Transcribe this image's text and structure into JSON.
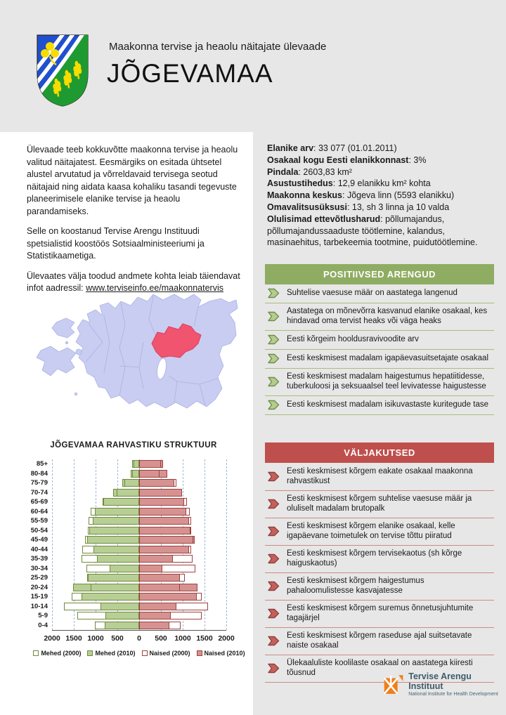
{
  "header": {
    "subtitle": "Maakonna tervise ja heaolu näitajate ülevaade",
    "title": "JÕGEVAMAA"
  },
  "intro": {
    "p1": "Ülevaade teeb kokkuvõtte maakonna tervise ja heaolu valitud näitajatest. Eesmärgiks on esitada ühtsetel alustel arvutatud ja võrreldavaid tervisega seotud näitajaid ning aidata kaasa kohaliku tasandi tegevuste planeerimisele elanike tervise ja heaolu parandamiseks.",
    "p2": "Selle on koostanud Tervise Arengu Instituudi spetsialistid koostöös Sotsiaalministeeriumi ja Statistikaametiga.",
    "p3_prefix": "Ülevaates välja toodud andmete kohta leiab täiendavat infot aadressil: ",
    "link": "www.terviseinfo.ee/maakonnatervis"
  },
  "facts": [
    {
      "label": "Elanike arv",
      "value": "33 077 (01.01.2011)"
    },
    {
      "label": "Osakaal kogu Eesti elanikkonnast",
      "value": "3%"
    },
    {
      "label": "Pindala",
      "value": "2603,83 km²"
    },
    {
      "label": "Asustustihedus",
      "value": "12,9 elanikku km² kohta"
    },
    {
      "label": "Maakonna keskus",
      "value": "Jõgeva linn (5593 elanikku)"
    },
    {
      "label": "Omavalitsusüksusi",
      "value": "13, sh 3 linna ja 10 valda"
    },
    {
      "label": "Olulisimad ettevõtlusharud",
      "value": "põllumajandus, põllumajandussaaduste töötlemine, kalandus, masinaehitus, tarbekeemia tootmine, puidutöötlemine."
    }
  ],
  "positive": {
    "title": "POSITIIVSED ARENGUD",
    "header_color": "#8fac63",
    "items": [
      "Suhtelise vaesuse määr on aastatega langenud",
      "Aastatega on mõnevõrra kasvanud elanike osakaal, kes hindavad oma tervist heaks või väga heaks",
      "Eesti kõrgeim hooldusravivoodite arv",
      "Eesti keskmisest madalam igapäevasuitsetajate osakaal",
      "Eesti keskmisest madalam haigestumus hepatiitidesse, tuberkuloosi ja seksuaalsel teel levivatesse haigustesse",
      "Eesti keskmisest madalam isikuvastaste kuritegude tase"
    ]
  },
  "challenges": {
    "title": "VÄLJAKUTSED",
    "header_color": "#bf4f4c",
    "items": [
      "Eesti keskmisest kõrgem eakate osakaal maakonna rahvastikust",
      "Eesti keskmisest kõrgem suhtelise vaesuse määr ja oluliselt madalam brutopalk",
      "Eesti keskmisest kõrgem elanike osakaal, kelle igapäevane toimetulek on tervise tõttu piiratud",
      "Eesti keskmisest kõrgem tervisekaotus (sh kõrge haiguskaotus)",
      "Eesti keskmisest kõrgem haigestumus pahaloomulistesse kasvajatesse",
      "Eesti keskmisest kõrgem suremus õnnetusjuhtumite tagajärjel",
      "Eesti keskmisest kõrgem raseduse ajal suitsetavate naiste osakaal",
      "Ülekaaluliste koolilaste osakaal on aastatega kiiresti tõusnud"
    ]
  },
  "map": {
    "label": "estonia-county-map",
    "highlighted_county": "Jõgevamaa",
    "base_color": "#c9cdf1",
    "border_color": "#aab2e6",
    "highlight_color": "#f0546f"
  },
  "chart_data": {
    "type": "bar",
    "subtype": "population-pyramid",
    "title": "JÕGEVAMAA RAHVASTIKU STRUKTUUR",
    "age_groups": [
      "85+",
      "80-84",
      "75-79",
      "70-74",
      "65-69",
      "60-64",
      "55-59",
      "50-54",
      "45-49",
      "40-44",
      "35-39",
      "30-34",
      "25-29",
      "20-24",
      "15-19",
      "10-14",
      "5-9",
      "0-4"
    ],
    "series": [
      {
        "name": "Mehed (2000)",
        "style": "outline",
        "color": "#71893f",
        "values": [
          130,
          165,
          335,
          515,
          820,
          1115,
          1165,
          1185,
          1240,
          1305,
          1330,
          1210,
          1190,
          1120,
          1555,
          1730,
          1420,
          1010
        ]
      },
      {
        "name": "Mehed (2010)",
        "style": "fill",
        "color": "#b7cf94",
        "values": [
          155,
          195,
          380,
          600,
          840,
          1015,
          1070,
          1145,
          1200,
          1055,
          970,
          670,
          1180,
          1510,
          1330,
          890,
          780,
          795
        ]
      },
      {
        "name": "Naised (2000)",
        "style": "outline",
        "color": "#9c4340",
        "values": [
          500,
          470,
          860,
          990,
          1100,
          1165,
          1190,
          1190,
          1240,
          1195,
          1220,
          1290,
          1045,
          930,
          1440,
          1580,
          1430,
          950
        ]
      },
      {
        "name": "Naised (2010)",
        "style": "fill",
        "color": "#d69290",
        "values": [
          545,
          640,
          800,
          990,
          1030,
          1080,
          1150,
          1170,
          1280,
          1140,
          770,
          540,
          935,
          1335,
          1320,
          860,
          730,
          695
        ]
      }
    ],
    "x_ticks": [
      "2000",
      "1500",
      "1000",
      "500",
      "0",
      "500",
      "1000",
      "1500",
      "2000"
    ],
    "xlim": [
      -2000,
      2000
    ],
    "gridline_step": 500,
    "grid": true,
    "legend_position": "bottom"
  },
  "footer": {
    "logo_title": "Tervise Arengu Instituut",
    "logo_subtitle": "National Institute for Health Development"
  }
}
